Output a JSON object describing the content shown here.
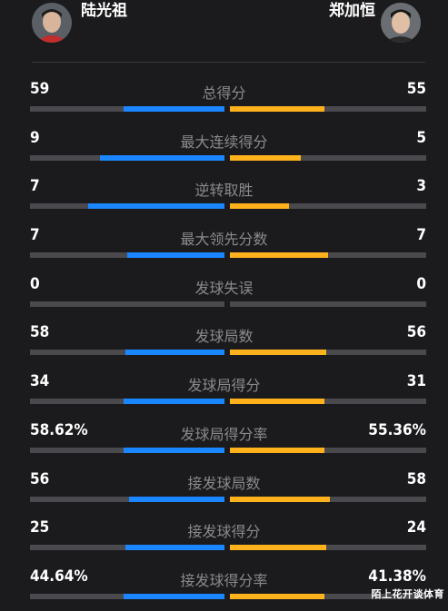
{
  "players": {
    "left": {
      "name": "陆光祖"
    },
    "right": {
      "name": "郑加恒"
    }
  },
  "colors": {
    "left": "#1a86ff",
    "right": "#ffb21c",
    "track": "#4a4a4e",
    "background": "#1b1b1d"
  },
  "stats": [
    {
      "label": "总得分",
      "left": "59",
      "right": "55",
      "left_frac": 0.52,
      "right_frac": 0.48
    },
    {
      "label": "最大连续得分",
      "left": "9",
      "right": "5",
      "left_frac": 0.64,
      "right_frac": 0.36
    },
    {
      "label": "逆转取胜",
      "left": "7",
      "right": "3",
      "left_frac": 0.7,
      "right_frac": 0.3
    },
    {
      "label": "最大领先分数",
      "left": "7",
      "right": "7",
      "left_frac": 0.5,
      "right_frac": 0.5
    },
    {
      "label": "发球失误",
      "left": "0",
      "right": "0",
      "left_frac": 0,
      "right_frac": 0
    },
    {
      "label": "发球局数",
      "left": "58",
      "right": "56",
      "left_frac": 0.51,
      "right_frac": 0.49
    },
    {
      "label": "发球局得分",
      "left": "34",
      "right": "31",
      "left_frac": 0.52,
      "right_frac": 0.48
    },
    {
      "label": "发球局得分率",
      "left": "58.62%",
      "right": "55.36%",
      "left_frac": 0.52,
      "right_frac": 0.48
    },
    {
      "label": "接发球局数",
      "left": "56",
      "right": "58",
      "left_frac": 0.49,
      "right_frac": 0.51
    },
    {
      "label": "接发球得分",
      "left": "25",
      "right": "24",
      "left_frac": 0.51,
      "right_frac": 0.49
    },
    {
      "label": "接发球得分率",
      "left": "44.64%",
      "right": "41.38%",
      "left_frac": 0.52,
      "right_frac": 0.48
    }
  ],
  "watermark": "陌上花开谈体育"
}
